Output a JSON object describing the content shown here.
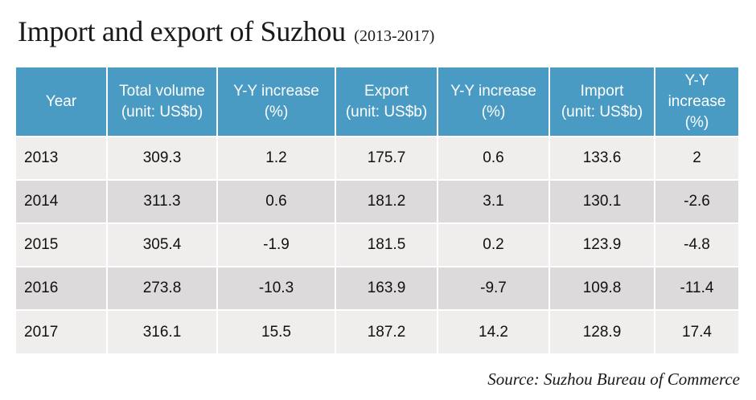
{
  "chart_data": {
    "type": "table",
    "title": "Import and export of Suzhou",
    "subtitle": "(2013-2017)",
    "columns": [
      "Year",
      "Total volume (unit: US$b)",
      "Y-Y increase (%)",
      "Export (unit: US$b)",
      "Y-Y increase (%)",
      "Import (unit: US$b)",
      "Y-Y increase (%)"
    ],
    "header_lines": [
      [
        "Year"
      ],
      [
        "Total volume",
        "(unit: US$b)"
      ],
      [
        "Y-Y increase",
        "(%)"
      ],
      [
        "Export",
        "(unit: US$b)"
      ],
      [
        "Y-Y increase",
        "(%)"
      ],
      [
        "Import",
        "(unit: US$b)"
      ],
      [
        "Y-Y",
        "increase",
        "(%)"
      ]
    ],
    "rows": [
      [
        "2013",
        "309.3",
        "1.2",
        "175.7",
        "0.6",
        "133.6",
        "2"
      ],
      [
        "2014",
        "311.3",
        "0.6",
        "181.2",
        "3.1",
        "130.1",
        "-2.6"
      ],
      [
        "2015",
        "305.4",
        "-1.9",
        "181.5",
        "0.2",
        "123.9",
        "-4.8"
      ],
      [
        "2016",
        "273.8",
        "-10.3",
        "163.9",
        "-9.7",
        "109.8",
        "-11.4"
      ],
      [
        "2017",
        "316.1",
        "15.5",
        "187.2",
        "14.2",
        "128.9",
        "17.4"
      ]
    ],
    "source": "Source: Suzhou Bureau of Commerce"
  },
  "colors": {
    "header_bg": "#4a9bc4",
    "row_light": "#f0eeec",
    "row_dark": "#dcdadb"
  }
}
